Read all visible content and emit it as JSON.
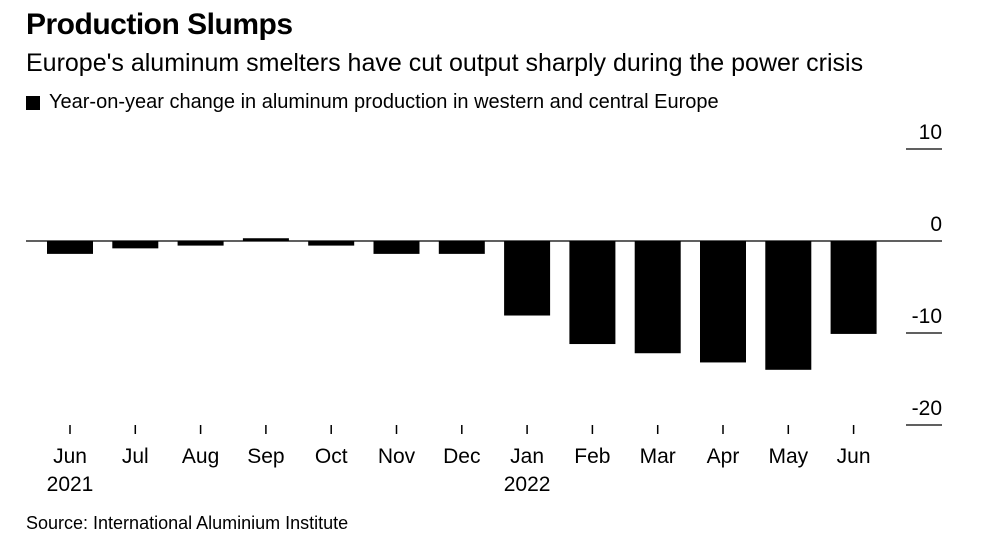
{
  "chart_data": {
    "type": "bar",
    "title": "Production Slumps",
    "subtitle": "Europe's aluminum smelters have cut output sharply during the power crisis",
    "legend": [
      {
        "name": "Year-on-year change in aluminum production in western and central Europe",
        "color": "#000000"
      }
    ],
    "categories": [
      "Jun",
      "Jul",
      "Aug",
      "Sep",
      "Oct",
      "Nov",
      "Dec",
      "Jan",
      "Feb",
      "Mar",
      "Apr",
      "May",
      "Jun"
    ],
    "year_labels": [
      "2021",
      "",
      "",
      "",
      "",
      "",
      "",
      "2022",
      "",
      "",
      "",
      "",
      ""
    ],
    "values": [
      -1.4,
      -0.8,
      -0.5,
      0.3,
      -0.5,
      -1.4,
      -1.4,
      -8.1,
      -11.2,
      -12.2,
      -13.2,
      -14.0,
      -10.1
    ],
    "yticks": [
      10,
      0,
      -10,
      -20
    ],
    "ytick_labels": [
      "10",
      "0",
      "-10",
      "-20"
    ],
    "ylim": [
      -20,
      10
    ],
    "xlabel": "",
    "ylabel": "",
    "grid": false,
    "source": "Source: International Aluminium Institute"
  }
}
